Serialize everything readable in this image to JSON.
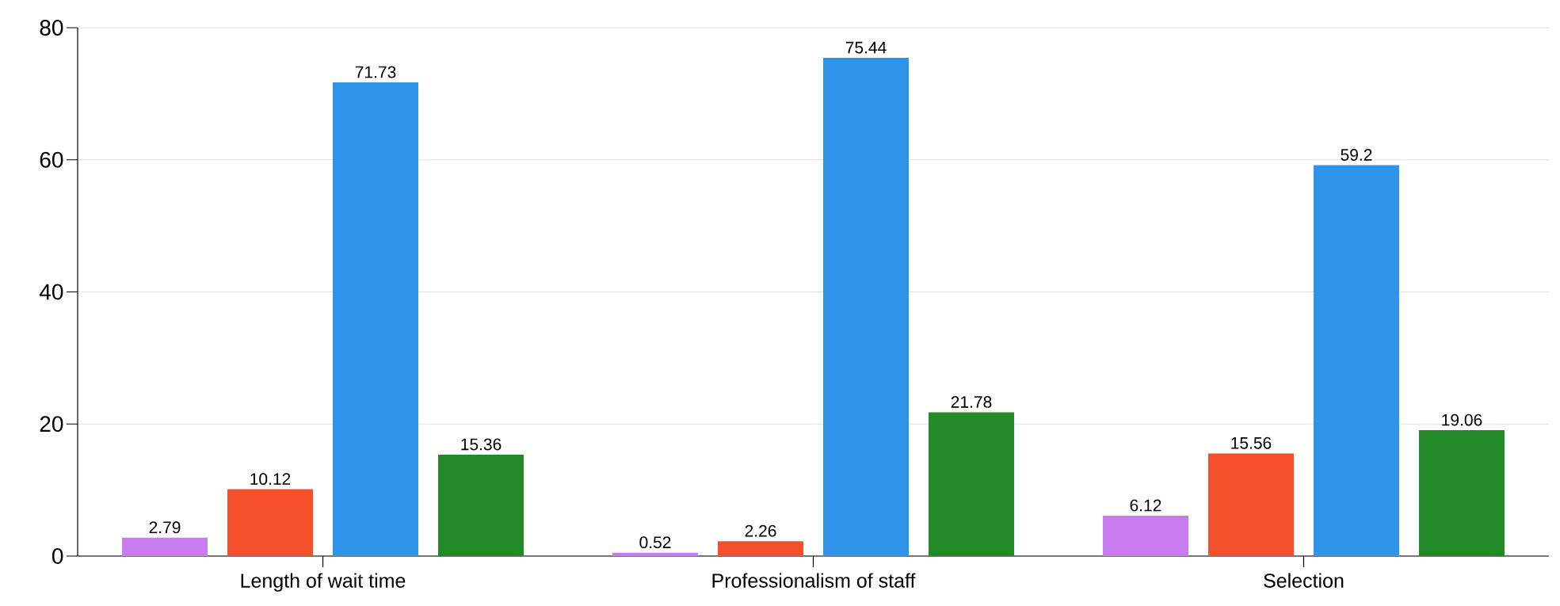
{
  "chart_data": {
    "type": "bar",
    "categories": [
      "Length of wait time",
      "Professionalism of staff",
      "Selection"
    ],
    "series": [
      {
        "color": "#c77cf0",
        "values": [
          2.79,
          0.52,
          6.12
        ]
      },
      {
        "color": "#f4502c",
        "values": [
          10.12,
          2.26,
          15.56
        ]
      },
      {
        "color": "#2f93e8",
        "values": [
          71.73,
          75.44,
          59.2
        ]
      },
      {
        "color": "#228b27",
        "values": [
          15.36,
          21.78,
          19.06
        ]
      }
    ],
    "ylim": [
      0,
      80
    ],
    "yticks": [
      0,
      20,
      40,
      60,
      80
    ],
    "grid": "y",
    "data_labels": true
  }
}
